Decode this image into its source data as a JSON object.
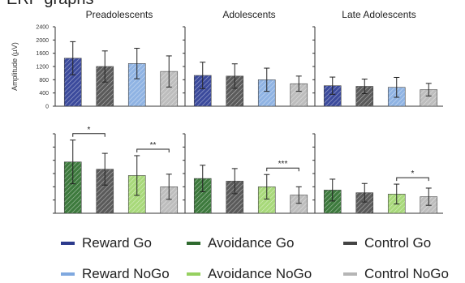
{
  "section_title": "ERP graphs",
  "chart_data": {
    "type": "bar",
    "ylabel": "Amplitude (µV)",
    "yticks": [
      0,
      400,
      800,
      1200,
      1600,
      2000,
      2400
    ],
    "ylim": [
      0,
      2400
    ],
    "grid": false,
    "legend_position": "bottom",
    "panels": [
      {
        "title": "Preadolescents",
        "series": [
          {
            "name": "Reward Go",
            "color": "#3b4a9c",
            "value": 1450,
            "err": 500
          },
          {
            "name": "Control Go",
            "color": "#5a5a5a",
            "value": 1200,
            "err": 470
          },
          {
            "name": "Reward NoGo",
            "color": "#8fb3e3",
            "value": 1290,
            "err": 460
          },
          {
            "name": "Control NoGo",
            "color": "#bdbdbd",
            "value": 1050,
            "err": 470
          }
        ]
      },
      {
        "title": "Adolescents",
        "series": [
          {
            "name": "Reward Go",
            "color": "#3b4a9c",
            "value": 930,
            "err": 400
          },
          {
            "name": "Control Go",
            "color": "#5a5a5a",
            "value": 910,
            "err": 370
          },
          {
            "name": "Reward NoGo",
            "color": "#8fb3e3",
            "value": 800,
            "err": 350
          },
          {
            "name": "Control NoGo",
            "color": "#bdbdbd",
            "value": 680,
            "err": 230
          }
        ]
      },
      {
        "title": "Late Adolescents",
        "series": [
          {
            "name": "Reward Go",
            "color": "#3b4a9c",
            "value": 620,
            "err": 260
          },
          {
            "name": "Control Go",
            "color": "#5a5a5a",
            "value": 600,
            "err": 220
          },
          {
            "name": "Reward NoGo",
            "color": "#8fb3e3",
            "value": 570,
            "err": 300
          },
          {
            "name": "Control NoGo",
            "color": "#bdbdbd",
            "value": 500,
            "err": 190
          }
        ]
      },
      {
        "title": "",
        "series": [
          {
            "name": "Avoidance Go",
            "color": "#3d7a3d",
            "value": 1550,
            "err": 660
          },
          {
            "name": "Control Go",
            "color": "#5a5a5a",
            "value": 1330,
            "err": 480
          },
          {
            "name": "Avoidance NoGo",
            "color": "#a8d97a",
            "value": 1140,
            "err": 600
          },
          {
            "name": "Control NoGo",
            "color": "#bdbdbd",
            "value": 800,
            "err": 380
          }
        ],
        "significance": [
          {
            "from": 0,
            "to": 1,
            "label": "*"
          },
          {
            "from": 2,
            "to": 3,
            "label": "**"
          }
        ]
      },
      {
        "title": "",
        "series": [
          {
            "name": "Avoidance Go",
            "color": "#3d7a3d",
            "value": 1050,
            "err": 400
          },
          {
            "name": "Control Go",
            "color": "#5a5a5a",
            "value": 970,
            "err": 380
          },
          {
            "name": "Avoidance NoGo",
            "color": "#a8d97a",
            "value": 800,
            "err": 370
          },
          {
            "name": "Control NoGo",
            "color": "#bdbdbd",
            "value": 550,
            "err": 250
          }
        ],
        "significance": [
          {
            "from": 2,
            "to": 3,
            "label": "***"
          }
        ]
      },
      {
        "title": "",
        "series": [
          {
            "name": "Avoidance Go",
            "color": "#3d7a3d",
            "value": 700,
            "err": 330
          },
          {
            "name": "Control Go",
            "color": "#5a5a5a",
            "value": 620,
            "err": 280
          },
          {
            "name": "Avoidance NoGo",
            "color": "#a8d97a",
            "value": 580,
            "err": 300
          },
          {
            "name": "Control NoGo",
            "color": "#bdbdbd",
            "value": 500,
            "err": 260
          }
        ],
        "significance": [
          {
            "from": 2,
            "to": 3,
            "label": "*"
          }
        ]
      }
    ]
  },
  "legend": [
    {
      "label": "Reward Go",
      "color": "#2c3a8c"
    },
    {
      "label": "Avoidance Go",
      "color": "#2f6a2f"
    },
    {
      "label": "Control Go",
      "color": "#444444"
    },
    {
      "label": "Reward NoGo",
      "color": "#7fa8df"
    },
    {
      "label": "Avoidance NoGo",
      "color": "#96d060"
    },
    {
      "label": "Control NoGo",
      "color": "#b5b5b5"
    }
  ]
}
